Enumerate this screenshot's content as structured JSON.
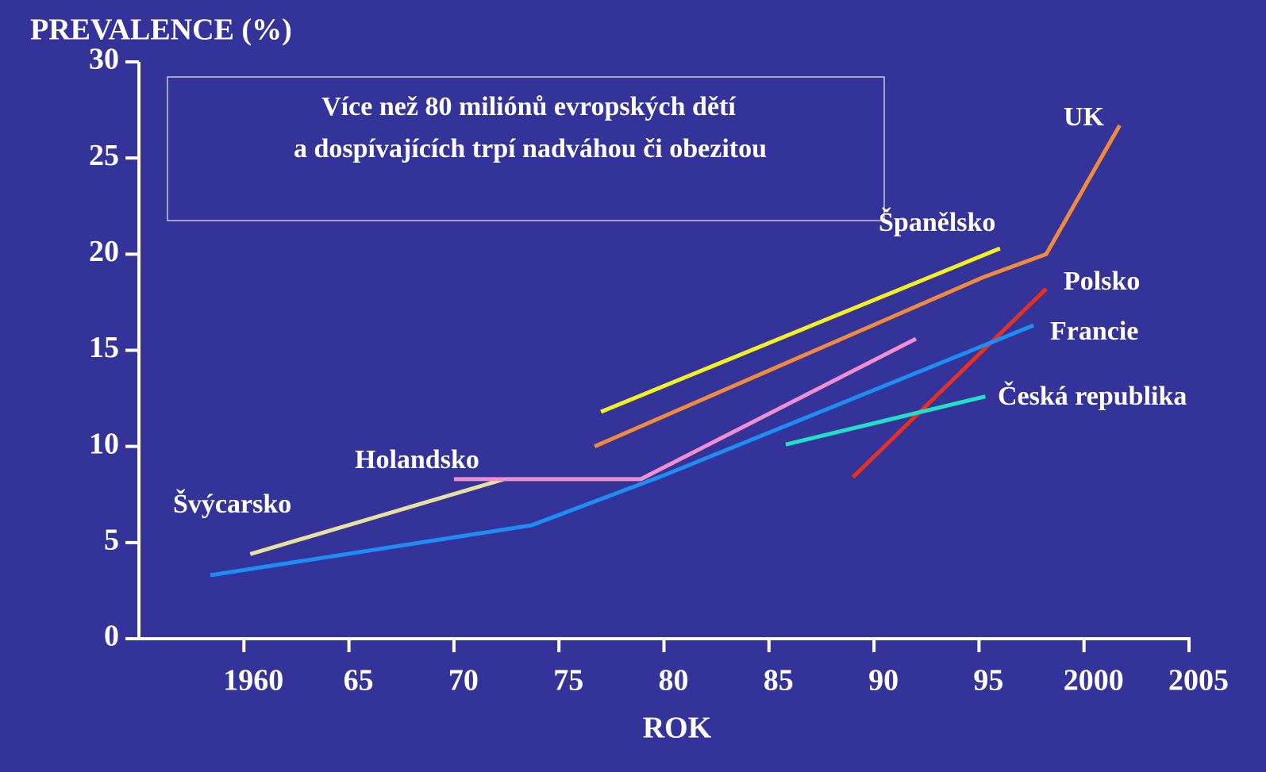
{
  "chart_data": {
    "type": "line",
    "title": "PREVALENCE (%)",
    "xlabel": "ROK",
    "annotation": [
      "Více než 80 miliónů evropských dětí",
      "a dospívajících trpí nadváhou či obezitou"
    ],
    "xlim": [
      1955,
      2005
    ],
    "ylim": [
      0,
      30
    ],
    "xticks": [
      1960,
      {
        "value": 1965,
        "label": "65"
      },
      {
        "value": 1970,
        "label": "70"
      },
      {
        "value": 1975,
        "label": "75"
      },
      {
        "value": 1980,
        "label": "80"
      },
      {
        "value": 1985,
        "label": "85"
      },
      {
        "value": 1990,
        "label": "90"
      },
      {
        "value": 1995,
        "label": "95"
      },
      2000,
      2005
    ],
    "yticks": [
      0,
      5,
      10,
      15,
      20,
      25,
      30
    ],
    "series": [
      {
        "name": "Švýcarsko",
        "color": "#e8e0a0",
        "x": [
          1960.3,
          1972.4
        ],
        "values": [
          4.4,
          8.3
        ]
      },
      {
        "name": "Holandsko",
        "color": "#f08ed0",
        "x": [
          1970,
          1978.9,
          1992
        ],
        "values": [
          8.3,
          8.3,
          15.6
        ]
      },
      {
        "name": "Španělsko",
        "color": "#f5f020",
        "x": [
          1977,
          1996
        ],
        "values": [
          11.8,
          20.3
        ]
      },
      {
        "name": "UK",
        "color": "#f08a3c",
        "x": [
          1976.7,
          1995.2,
          1998.2,
          2001.7
        ],
        "values": [
          10.0,
          18.8,
          20.0,
          26.7
        ]
      },
      {
        "name": "Polsko",
        "color": "#e83020",
        "x": [
          1989,
          1998.2
        ],
        "values": [
          8.4,
          18.2
        ]
      },
      {
        "name": "Francie",
        "color": "#1e8cf0",
        "x": [
          1958.4,
          1973.7,
          1980,
          1997.6
        ],
        "values": [
          3.3,
          5.9,
          8.5,
          16.3
        ]
      },
      {
        "name": "Česká republika",
        "color": "#20e0c8",
        "x": [
          1985.8,
          1995.3
        ],
        "values": [
          10.1,
          12.6
        ]
      }
    ]
  }
}
